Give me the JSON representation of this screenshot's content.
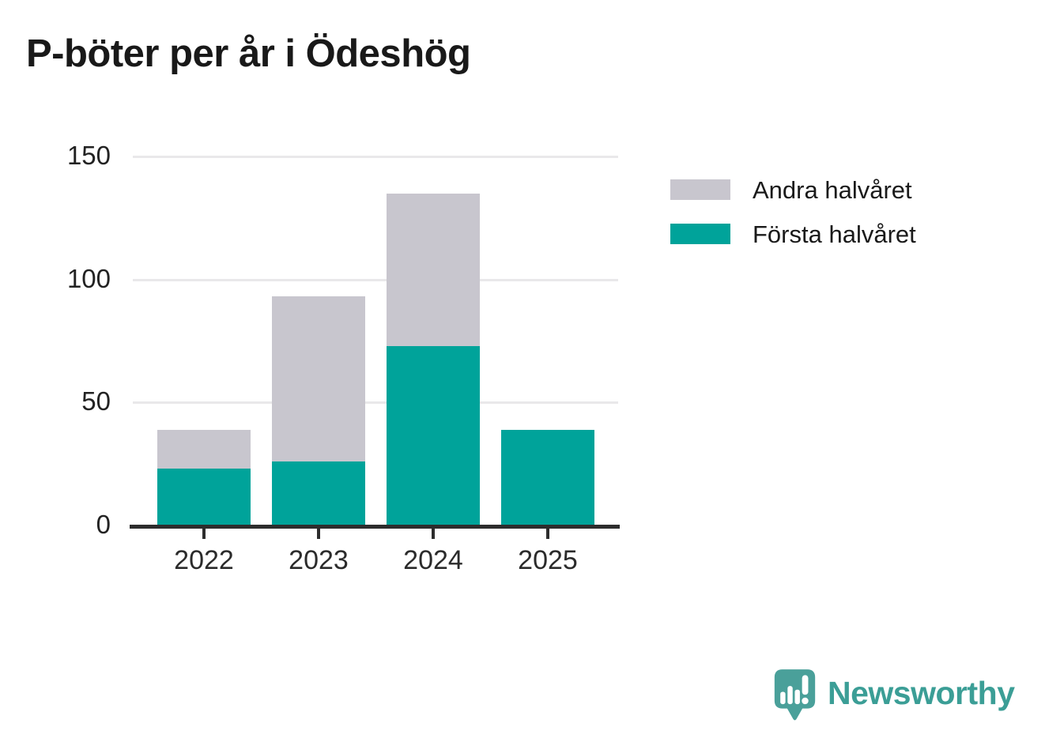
{
  "title": "P-böter per år i Ödeshög",
  "chart_data": {
    "type": "bar",
    "stacked": true,
    "title": "P-böter per år i Ödeshög",
    "categories": [
      "2022",
      "2023",
      "2024",
      "2025"
    ],
    "series": [
      {
        "name": "Första halvåret",
        "color": "#00a39a",
        "values": [
          23,
          26,
          73,
          39
        ]
      },
      {
        "name": "Andra halvåret",
        "color": "#c8c6ce",
        "values": [
          16,
          67,
          62,
          0
        ]
      }
    ],
    "totals": [
      39,
      93,
      135,
      39
    ],
    "xlabel": "",
    "ylabel": "",
    "ylim": [
      0,
      150
    ],
    "yticks": [
      0,
      50,
      100,
      150
    ],
    "grid": "horizontal-only",
    "legend_position": "top-right"
  },
  "legend": {
    "items": [
      {
        "label": "Andra halvåret",
        "color": "#c8c6ce"
      },
      {
        "label": "Första halvåret",
        "color": "#00a39a"
      }
    ]
  },
  "branding": {
    "logo_text": "Newsworthy",
    "text_color": "#3b9e96",
    "icon_color": "#4aa09a",
    "icon": "newsworthy-speech-bubble-barchart-icon"
  },
  "colors": {
    "background": "#ffffff",
    "title_text": "#191919",
    "axis_line": "#2d2d2d",
    "gridline": "#e9e8ea",
    "tick_label": "#2b2b2b"
  }
}
